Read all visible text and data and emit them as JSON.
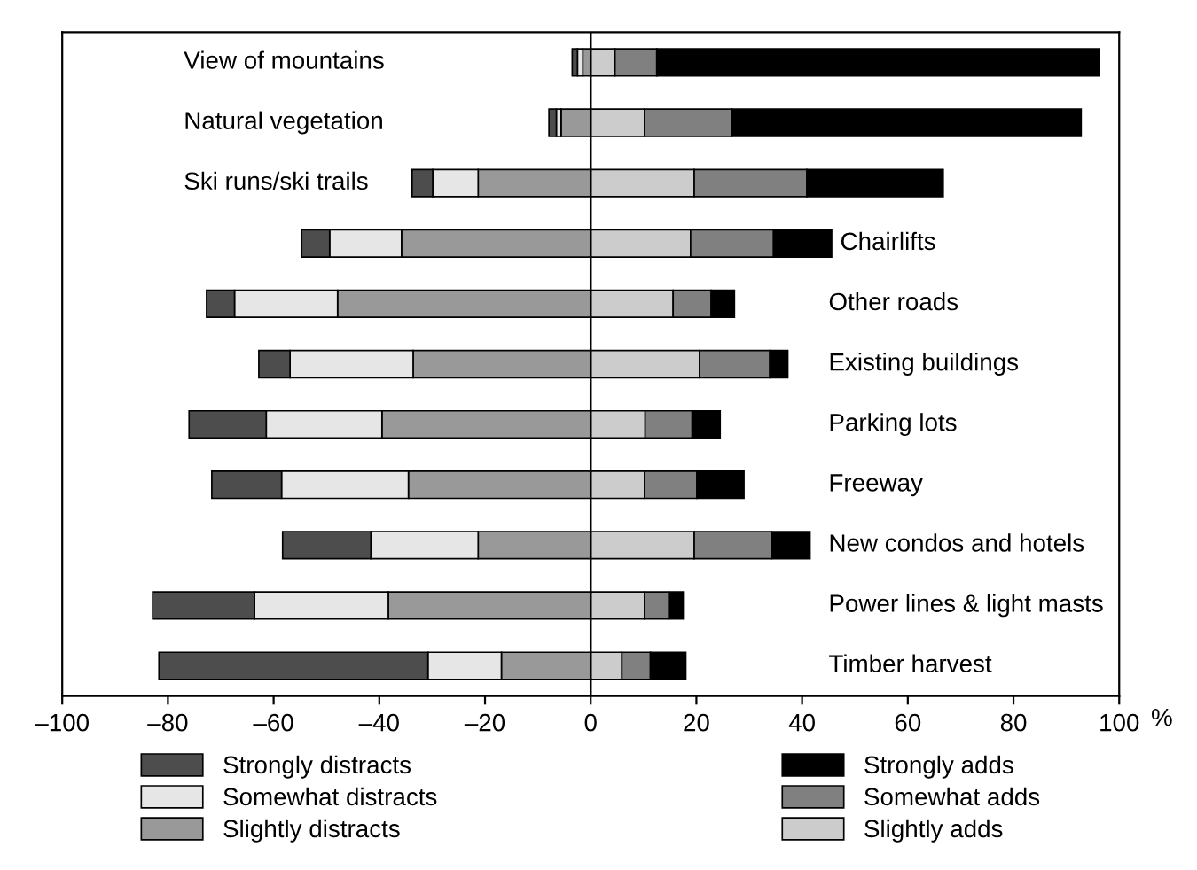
{
  "chart_data": {
    "type": "bar",
    "orientation": "horizontal",
    "stacked": true,
    "xlabel": "%",
    "categories": [
      "View of mountains",
      "Natural vegetation",
      "Ski runs/ski trails",
      "Chairlifts",
      "Other roads",
      "Existing buildings",
      "Parking lots",
      "Freeway",
      "New condos and hotels",
      "Power lines & light masts",
      "Timber harvest"
    ],
    "series": [
      {
        "name": "Slightly distracts",
        "color": "#999999",
        "values": [
          -1.5,
          -5.6,
          -21.3,
          -35.8,
          -47.9,
          -33.6,
          -39.5,
          -34.5,
          -21.3,
          -38.3,
          -16.9
        ]
      },
      {
        "name": "Somewhat distracts",
        "color": "#e6e6e6",
        "values": [
          -1.0,
          -0.9,
          -8.6,
          -13.6,
          -19.5,
          -23.3,
          -21.9,
          -24.0,
          -20.3,
          -25.3,
          -13.9
        ]
      },
      {
        "name": "Strongly distracts",
        "color": "#4d4d4d",
        "values": [
          -1.0,
          -1.4,
          -3.9,
          -5.3,
          -5.3,
          -5.9,
          -14.6,
          -13.2,
          -16.7,
          -19.3,
          -50.9
        ]
      },
      {
        "name": "Slightly adds",
        "color": "#cccccc",
        "values": [
          4.6,
          10.2,
          19.6,
          18.9,
          15.6,
          20.6,
          10.3,
          10.2,
          19.6,
          10.2,
          5.9
        ]
      },
      {
        "name": "Somewhat adds",
        "color": "#808080",
        "values": [
          7.9,
          16.5,
          21.3,
          15.7,
          7.2,
          13.3,
          8.9,
          9.9,
          14.6,
          4.6,
          5.4
        ]
      },
      {
        "name": "Strongly adds",
        "color": "#000000",
        "values": [
          83.8,
          66.1,
          25.8,
          11.0,
          4.4,
          3.4,
          5.3,
          8.9,
          7.3,
          2.7,
          6.7
        ]
      }
    ],
    "xlim": [
      -100,
      100
    ],
    "xticks": [
      {
        "value": -100,
        "label": "–100"
      },
      {
        "value": -80,
        "label": "–80"
      },
      {
        "value": -60,
        "label": "–60"
      },
      {
        "value": -40,
        "label": "–40"
      },
      {
        "value": -20,
        "label": "–20"
      },
      0,
      20,
      40,
      60,
      80,
      100
    ],
    "ref_lines": [
      {
        "axis": "x",
        "value": 0
      }
    ],
    "legend": "bottom",
    "grid": false
  }
}
